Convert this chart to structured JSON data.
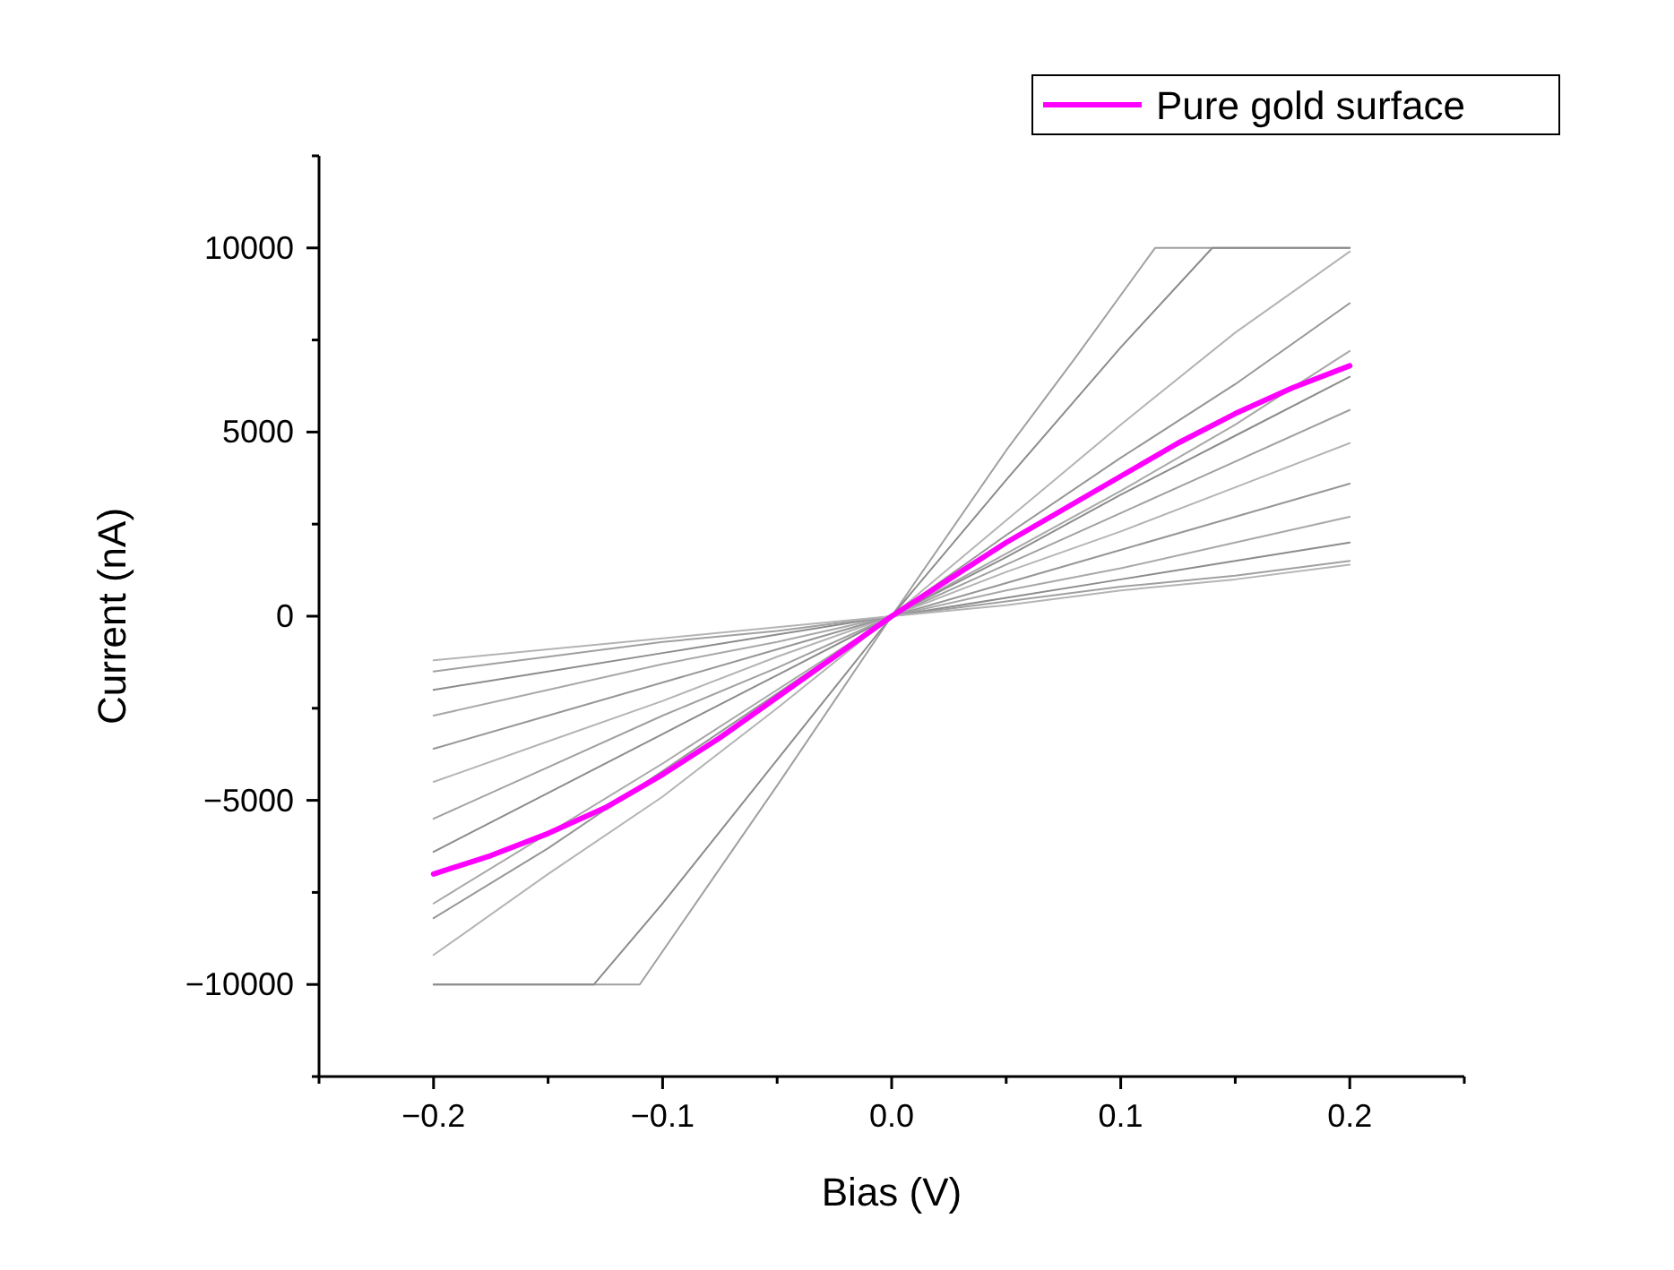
{
  "chart_data": {
    "type": "line",
    "xlabel": "Bias (V)",
    "ylabel": "Current (nA)",
    "xlim": [
      -0.25,
      0.25
    ],
    "ylim": [
      -12500,
      12500
    ],
    "xticks": [
      {
        "value": -0.25,
        "label": null
      },
      {
        "value": -0.2,
        "label": "−0.2"
      },
      {
        "value": -0.15,
        "label": null
      },
      {
        "value": -0.1,
        "label": "−0.1"
      },
      {
        "value": -0.05,
        "label": null
      },
      {
        "value": 0,
        "label": "0.0"
      },
      {
        "value": 0.05,
        "label": null
      },
      {
        "value": 0.1,
        "label": "0.1"
      },
      {
        "value": 0.15,
        "label": null
      },
      {
        "value": 0.2,
        "label": "0.2"
      },
      {
        "value": 0.25,
        "label": null
      }
    ],
    "yticks": [
      {
        "value": -12500,
        "label": null
      },
      {
        "value": -10000,
        "label": "−10000"
      },
      {
        "value": -7500,
        "label": null
      },
      {
        "value": -5000,
        "label": "−5000"
      },
      {
        "value": -2500,
        "label": null
      },
      0,
      {
        "value": 2500,
        "label": null
      },
      5000,
      {
        "value": 7500,
        "label": null
      },
      10000,
      {
        "value": 12500,
        "label": null
      }
    ],
    "grid": false,
    "legend": "top right",
    "line_style": "solid",
    "marker": "none",
    "series": [
      {
        "color": "#a0a0a0",
        "x": [
          -0.2,
          -0.11,
          -0.08,
          -0.05,
          0,
          0.05,
          0.08,
          0.115,
          0.2
        ],
        "values": [
          -10000,
          -10000,
          -7300,
          -4600,
          0,
          4500,
          7000,
          10000,
          10000
        ]
      },
      {
        "color": "#8c8c8c",
        "x": [
          -0.2,
          -0.13,
          -0.1,
          -0.05,
          0,
          0.05,
          0.1,
          0.14,
          0.2
        ],
        "values": [
          -10000,
          -10000,
          -7800,
          -3900,
          0,
          3700,
          7300,
          10000,
          10000
        ]
      },
      {
        "color": "#b4b4b4",
        "x": [
          -0.2,
          -0.15,
          -0.1,
          -0.05,
          0,
          0.05,
          0.1,
          0.15,
          0.2
        ],
        "values": [
          -9200,
          -7000,
          -4900,
          -2500,
          0,
          2600,
          5200,
          7700,
          9900
        ]
      },
      {
        "color": "#969696",
        "x": [
          -0.2,
          -0.15,
          -0.1,
          -0.05,
          0,
          0.05,
          0.1,
          0.15,
          0.2
        ],
        "values": [
          -8200,
          -6300,
          -4200,
          -2100,
          0,
          2200,
          4300,
          6300,
          8500
        ]
      },
      {
        "color": "#a8a8a8",
        "x": [
          -0.2,
          -0.15,
          -0.1,
          -0.05,
          0,
          0.05,
          0.1,
          0.15,
          0.2
        ],
        "values": [
          -7800,
          -5900,
          -4000,
          -2000,
          0,
          1700,
          3400,
          5200,
          7200
        ]
      },
      {
        "color": "#8c8c8c",
        "x": [
          -0.2,
          -0.15,
          -0.1,
          -0.05,
          0,
          0.05,
          0.1,
          0.15,
          0.2
        ],
        "values": [
          -6400,
          -4800,
          -3200,
          -1600,
          0,
          1600,
          3300,
          4900,
          6500
        ]
      },
      {
        "color": "#a0a0a0",
        "x": [
          -0.2,
          -0.15,
          -0.1,
          -0.05,
          0,
          0.05,
          0.1,
          0.15,
          0.2
        ],
        "values": [
          -5500,
          -4100,
          -2700,
          -1400,
          0,
          1400,
          2800,
          4200,
          5600
        ]
      },
      {
        "color": "#b4b4b4",
        "x": [
          -0.2,
          -0.15,
          -0.1,
          -0.05,
          0,
          0.05,
          0.1,
          0.15,
          0.2
        ],
        "values": [
          -4500,
          -3400,
          -2300,
          -1100,
          0,
          1200,
          2300,
          3500,
          4700
        ]
      },
      {
        "color": "#969696",
        "x": [
          -0.2,
          -0.15,
          -0.1,
          -0.05,
          0,
          0.05,
          0.1,
          0.15,
          0.2
        ],
        "values": [
          -3600,
          -2700,
          -1800,
          -900,
          0,
          900,
          1800,
          2700,
          3600
        ]
      },
      {
        "color": "#a8a8a8",
        "x": [
          -0.2,
          -0.15,
          -0.1,
          -0.05,
          0,
          0.05,
          0.1,
          0.15,
          0.2
        ],
        "values": [
          -2700,
          -2000,
          -1300,
          -700,
          0,
          700,
          1300,
          2000,
          2700
        ]
      },
      {
        "color": "#8c8c8c",
        "x": [
          -0.2,
          -0.15,
          -0.1,
          -0.05,
          0,
          0.05,
          0.1,
          0.15,
          0.2
        ],
        "values": [
          -2000,
          -1500,
          -1000,
          -500,
          0,
          500,
          1000,
          1500,
          2000
        ]
      },
      {
        "color": "#a0a0a0",
        "x": [
          -0.2,
          -0.15,
          -0.1,
          -0.05,
          0,
          0.05,
          0.1,
          0.15,
          0.2
        ],
        "values": [
          -1500,
          -1100,
          -700,
          -400,
          0,
          400,
          800,
          1100,
          1500
        ]
      },
      {
        "color": "#b4b4b4",
        "x": [
          -0.2,
          -0.15,
          -0.1,
          -0.05,
          0,
          0.05,
          0.1,
          0.15,
          0.2
        ],
        "values": [
          -1200,
          -900,
          -600,
          -300,
          0,
          300,
          700,
          1000,
          1400
        ]
      },
      {
        "name": "Pure gold surface",
        "color": "#ff00ff",
        "x": [
          -0.2,
          -0.175,
          -0.15,
          -0.125,
          -0.1,
          -0.075,
          -0.05,
          -0.025,
          0,
          0.025,
          0.05,
          0.075,
          0.1,
          0.125,
          0.15,
          0.175,
          0.2
        ],
        "values": [
          -7000,
          -6500,
          -5900,
          -5200,
          -4300,
          -3300,
          -2200,
          -1100,
          0,
          1000,
          2000,
          2900,
          3800,
          4700,
          5500,
          6200,
          6800
        ]
      }
    ]
  }
}
